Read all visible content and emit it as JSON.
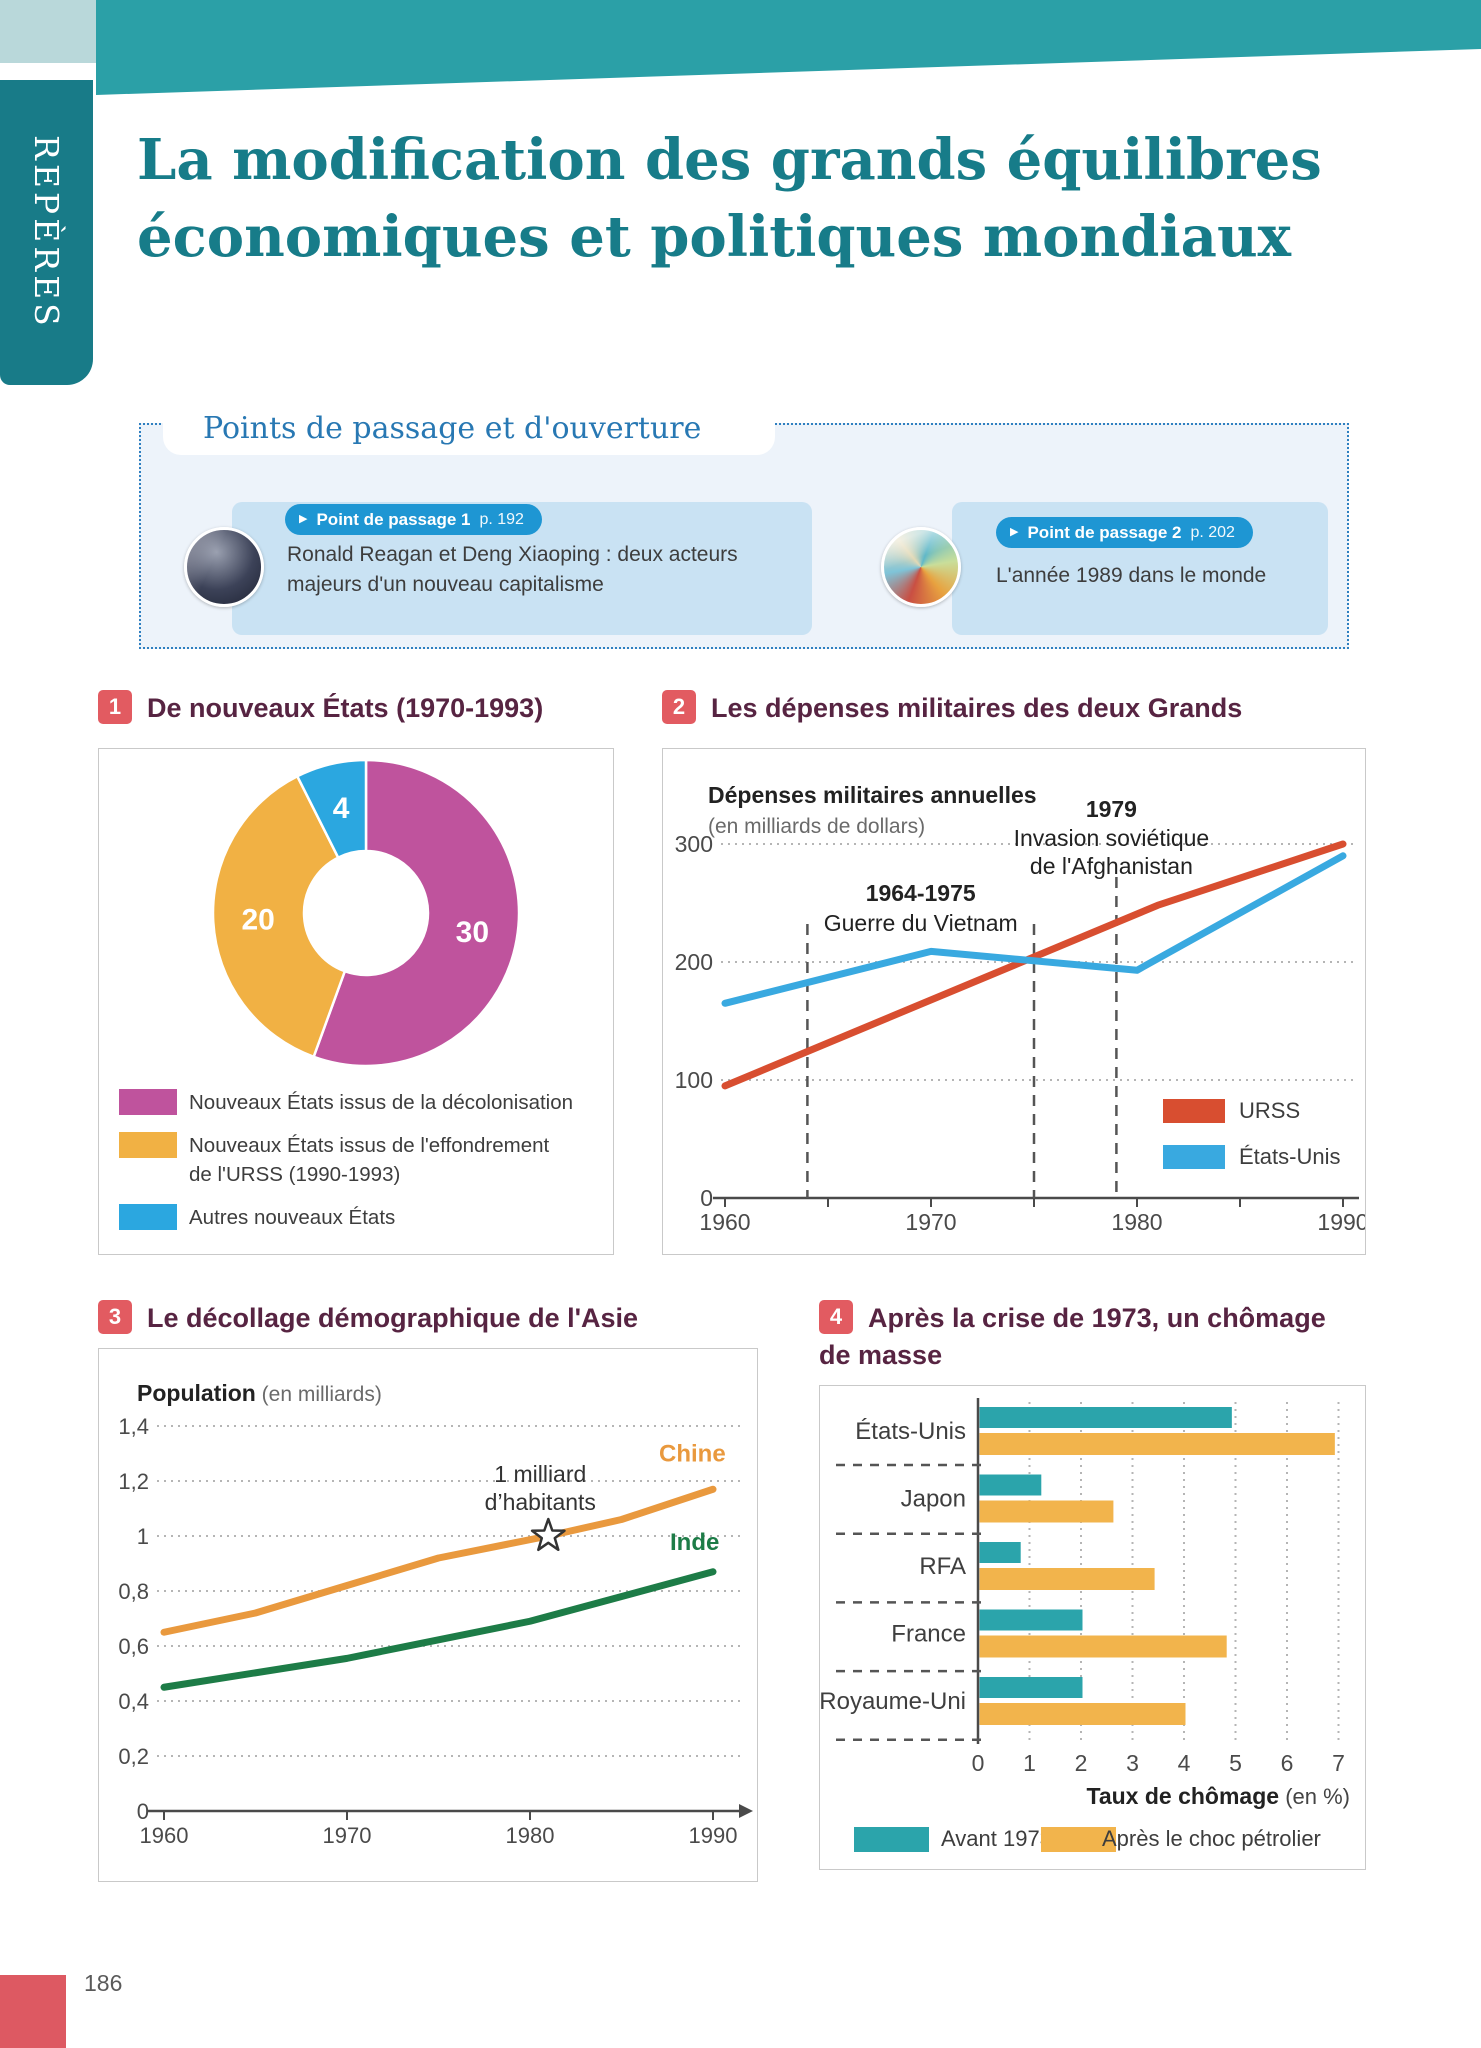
{
  "page": {
    "number": "186"
  },
  "header": {
    "kicker": "REPÈRES",
    "title_line1": "La modification des grands équilibres",
    "title_line2": "économiques et politiques mondiaux"
  },
  "points_panel": {
    "title": "Points de passage et d'ouverture",
    "cards": [
      {
        "arrow": "▶",
        "pill_label": "Point de passage 1",
        "pill_page": "p. 192",
        "line1": "Ronald Reagan et Deng Xiaoping : deux acteurs",
        "line2": "majeurs d'un nouveau capitalisme"
      },
      {
        "arrow": "▶",
        "pill_label": "Point de passage 2",
        "pill_page": "p. 202",
        "line1": "L'année 1989 dans le monde",
        "line2": ""
      }
    ]
  },
  "sections": [
    {
      "num": "1",
      "title": "De nouveaux États (1970-1993)"
    },
    {
      "num": "2",
      "title": "Les dépenses militaires des deux Grands"
    },
    {
      "num": "3",
      "title": "Le décollage démographique de l'Asie"
    },
    {
      "num": "4",
      "title": "Après la crise de 1973, un chômage de masse"
    }
  ],
  "chart_data": [
    {
      "id": "new_states",
      "type": "pie",
      "subtype": "donut",
      "title": "De nouveaux États (1970-1993)",
      "slices": [
        {
          "value": 30,
          "color": "#bf539d",
          "legend": [
            "Nouveaux États issus de la décolonisation"
          ]
        },
        {
          "value": 20,
          "color": "#f1b144",
          "legend": [
            "Nouveaux États issus de l'effondrement",
            "de l'URSS (1990-1993)"
          ]
        },
        {
          "value": 4,
          "color": "#2ba7e0",
          "legend": [
            "Autres nouveaux États"
          ]
        }
      ]
    },
    {
      "id": "military_spending",
      "type": "line",
      "title": "Dépenses militaires annuelles",
      "subtitle": "(en milliards de dollars)",
      "x_range": [
        1960,
        1990
      ],
      "x_tick_labels": [
        1960,
        1970,
        1980,
        1990
      ],
      "y_tick_labels": [
        0,
        100,
        200,
        300
      ],
      "series": [
        {
          "name": "URSS",
          "color": "#d84e30",
          "points": [
            [
              1960,
              95
            ],
            [
              1981,
              248
            ],
            [
              1990,
              300
            ]
          ]
        },
        {
          "name": "États-Unis",
          "color": "#39a9e0",
          "points": [
            [
              1960,
              165
            ],
            [
              1970,
              209
            ],
            [
              1980,
              193
            ],
            [
              1990,
              290
            ]
          ]
        }
      ],
      "event_lines": [
        1964,
        1975,
        1979
      ],
      "annotations": [
        {
          "bold": "1964-1975",
          "lines": [
            "Guerre du Vietnam"
          ],
          "anchor_year": 1969.5
        },
        {
          "bold": "1979",
          "lines": [
            "Invasion soviétique",
            "de l'Afghanistan"
          ],
          "anchor_year": 1979
        }
      ]
    },
    {
      "id": "asia_population",
      "type": "line",
      "title": "Population",
      "subtitle": "(en milliards)",
      "x_tick_labels": [
        1960,
        1970,
        1980,
        1990
      ],
      "y_tick_labels": [
        "0",
        "0,2",
        "0,4",
        "0,6",
        "0,8",
        "1",
        "1,2",
        "1,4"
      ],
      "y_step": 0.2,
      "series": [
        {
          "name": "Chine",
          "color": "#e9993e",
          "points": [
            [
              1960,
              0.65
            ],
            [
              1965,
              0.72
            ],
            [
              1970,
              0.82
            ],
            [
              1975,
              0.92
            ],
            [
              1981,
              1.0
            ],
            [
              1985,
              1.06
            ],
            [
              1990,
              1.17
            ]
          ]
        },
        {
          "name": "Inde",
          "color": "#1d7c47",
          "points": [
            [
              1960,
              0.45
            ],
            [
              1970,
              0.555
            ],
            [
              1980,
              0.69
            ],
            [
              1990,
              0.87
            ]
          ]
        }
      ],
      "annotation": {
        "lines": [
          "1 milliard",
          "d’habitants"
        ],
        "marker": "star",
        "year": 1981,
        "value": 1
      }
    },
    {
      "id": "unemployment",
      "type": "bar",
      "orientation": "horizontal",
      "categories": [
        "États-Unis",
        "Japon",
        "RFA",
        "France",
        "Royaume-Uni"
      ],
      "series": [
        {
          "name": "Avant 1973",
          "color": "#2ba4ab",
          "values": [
            4.9,
            1.2,
            0.8,
            2,
            2
          ]
        },
        {
          "name": "Après le choc pétrolier",
          "color": "#f2b44c",
          "values": [
            6.9,
            2.6,
            3.4,
            4.8,
            4
          ]
        }
      ],
      "x_tick_labels": [
        0,
        1,
        2,
        3,
        4,
        5,
        6,
        7
      ],
      "xlim": [
        0,
        7
      ],
      "xlabel": "Taux de chômage",
      "xlabel_unit": "(en %)"
    }
  ]
}
